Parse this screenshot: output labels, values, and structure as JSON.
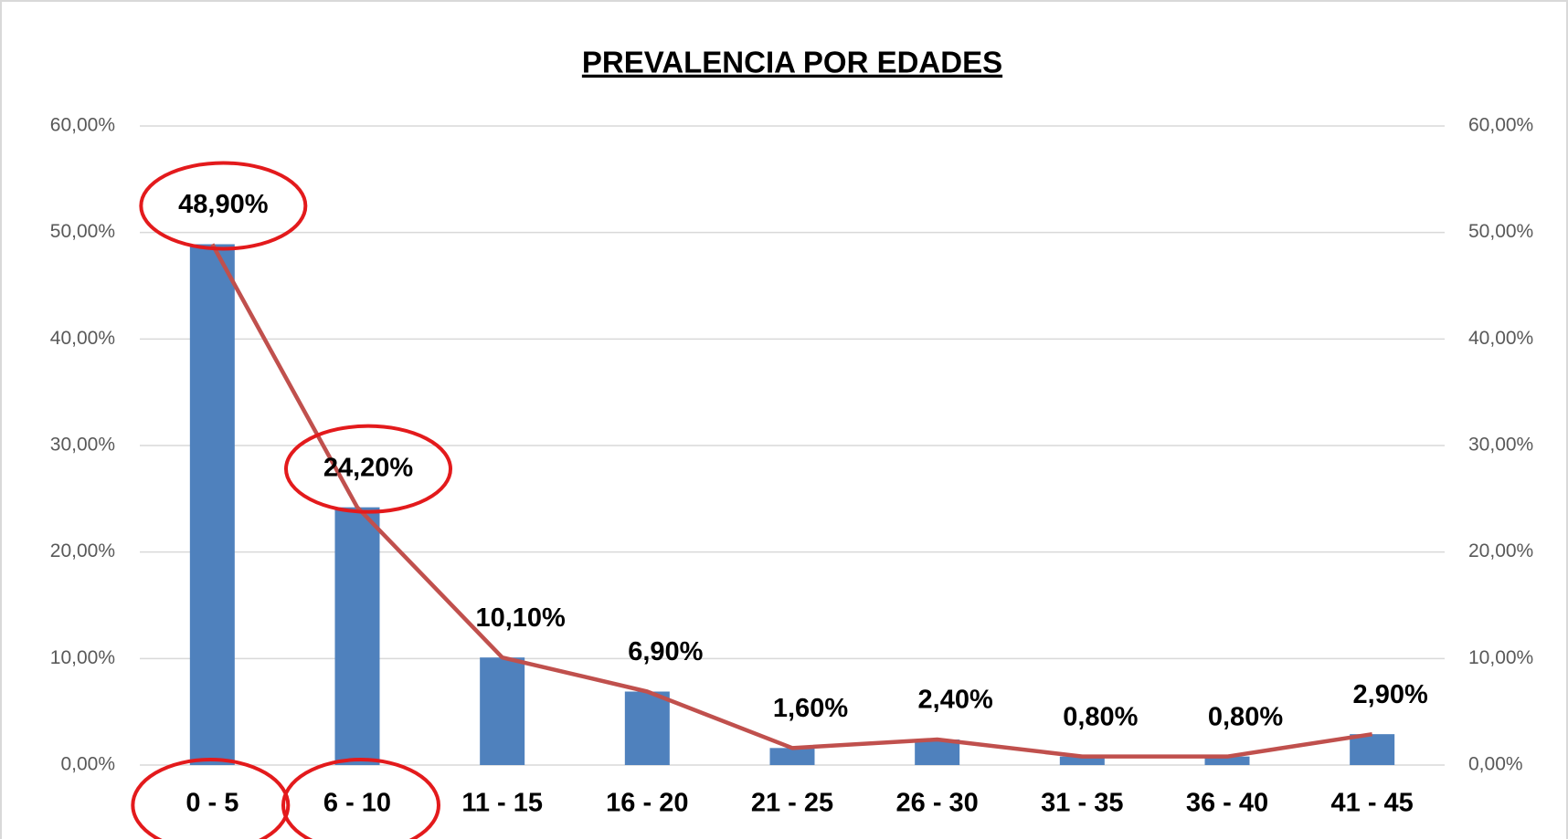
{
  "chart_data": {
    "type": "bar_line",
    "title": "PREVALENCIA POR EDADES",
    "categories": [
      "0 - 5",
      "6 - 10",
      "11 - 15",
      "16 - 20",
      "21 - 25",
      "26 - 30",
      "31 - 35",
      "36 - 40",
      "41 - 45"
    ],
    "series": [
      {
        "type": "bar",
        "color": "#4f81bd",
        "values": [
          48.9,
          24.2,
          10.1,
          6.9,
          1.6,
          2.4,
          0.8,
          0.8,
          2.9
        ],
        "value_labels": [
          "48,90%",
          "24,20%",
          "10,10%",
          "6,90%",
          "1,60%",
          "2,40%",
          "0,80%",
          "0,80%",
          "2,90%"
        ]
      },
      {
        "type": "line",
        "axis": "y2",
        "color": "#c0504d",
        "values": [
          48.9,
          24.2,
          10.1,
          6.9,
          1.6,
          2.4,
          0.8,
          0.8,
          2.9
        ]
      }
    ],
    "ylim": [
      0,
      60
    ],
    "yticks": [
      {
        "value": 0,
        "label": "0,00%"
      },
      {
        "value": 10,
        "label": "10,00%"
      },
      {
        "value": 20,
        "label": "20,00%"
      },
      {
        "value": 30,
        "label": "30,00%"
      },
      {
        "value": 40,
        "label": "40,00%"
      },
      {
        "value": 50,
        "label": "50,00%"
      },
      {
        "value": 60,
        "label": "60,00%"
      }
    ],
    "y2lim": [
      0,
      60
    ],
    "y2ticks": [
      {
        "value": 0,
        "label": "0,00%"
      },
      {
        "value": 10,
        "label": "10,00%"
      },
      {
        "value": 20,
        "label": "20,00%"
      },
      {
        "value": 30,
        "label": "30,00%"
      },
      {
        "value": 40,
        "label": "40,00%"
      },
      {
        "value": 50,
        "label": "50,00%"
      },
      {
        "value": 60,
        "label": "60,00%"
      }
    ],
    "grid": true
  }
}
